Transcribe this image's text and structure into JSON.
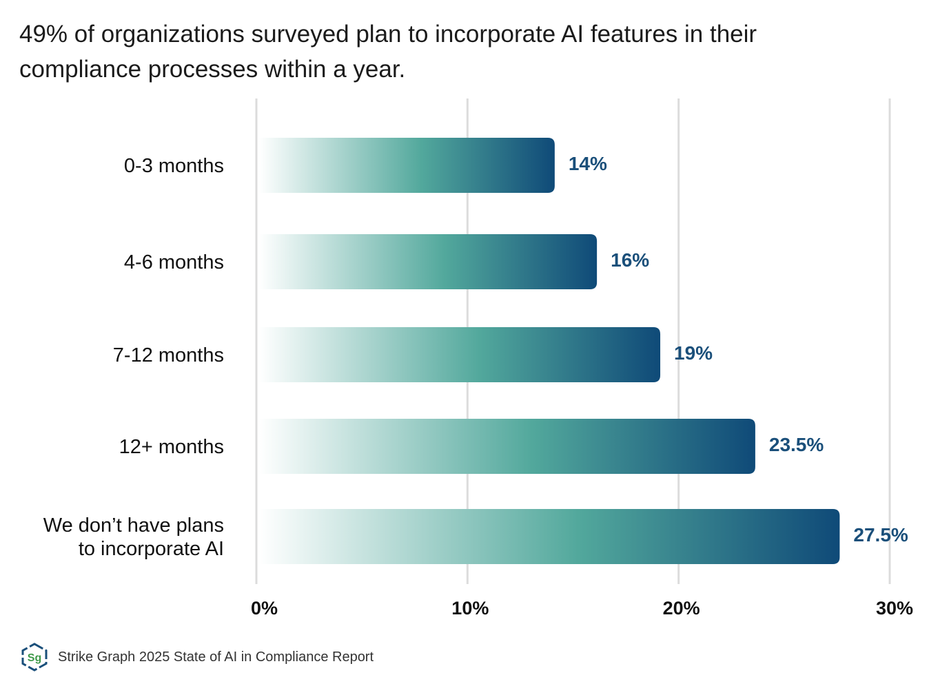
{
  "chart_data": {
    "type": "bar",
    "orientation": "horizontal",
    "title": "49% of organizations surveyed plan to incorporate AI features in their compliance processes within a year.",
    "categories": [
      [
        "0-3 months"
      ],
      [
        "4-6 months"
      ],
      [
        "7-12 months"
      ],
      [
        "12+ months"
      ],
      [
        "We don’t have plans",
        "to incorporate AI"
      ]
    ],
    "values": [
      14,
      16,
      19,
      23.5,
      27.5
    ],
    "data_labels": [
      "14%",
      "16%",
      "19%",
      "23.5%",
      "27.5%"
    ],
    "xlim": [
      0,
      30
    ],
    "xticks": [
      0,
      10,
      20,
      30
    ],
    "xtick_labels": [
      "0%",
      "10%",
      "20%",
      "30%"
    ],
    "grid": true,
    "xlabel": "",
    "ylabel": "",
    "colors": {
      "gradient_start": "#ffffff",
      "gradient_mid": "#52a89c",
      "gradient_end": "#0f4a78",
      "label": "#1a4f7a",
      "grid": "#dcdcdc"
    }
  },
  "footer": {
    "logo_text": "Sg",
    "source": "Strike Graph 2025 State of AI in Compliance Report"
  }
}
